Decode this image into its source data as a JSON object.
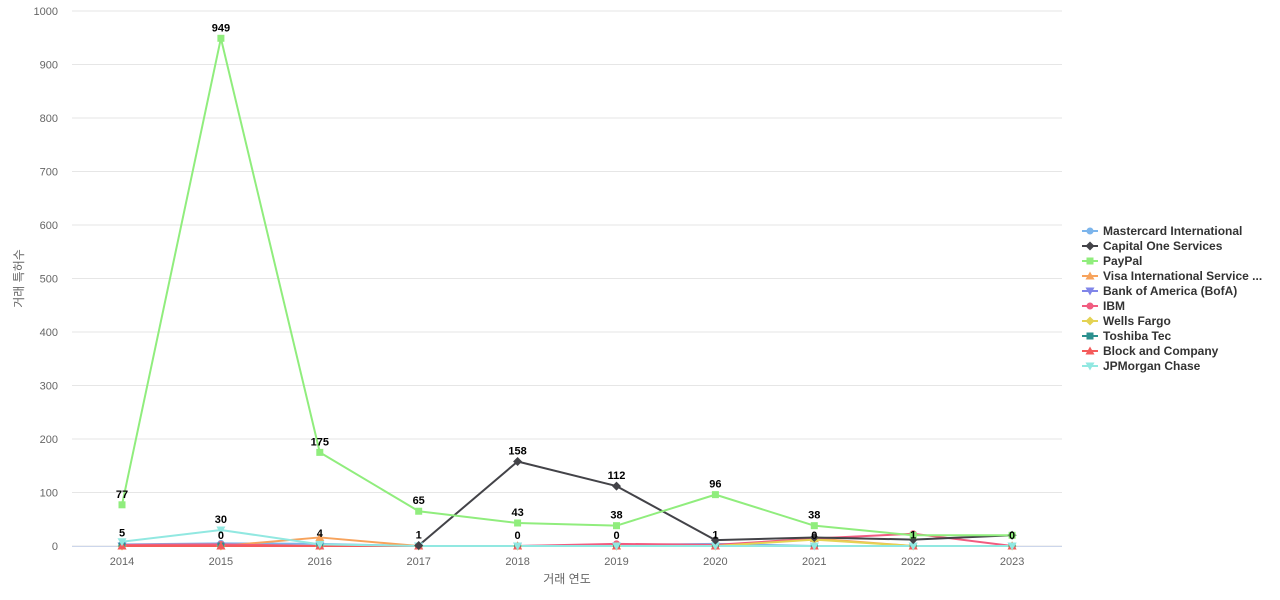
{
  "chart_data": {
    "type": "line",
    "title": "",
    "xlabel": "거래 연도",
    "ylabel": "거래 특허수",
    "categories": [
      "2014",
      "2015",
      "2016",
      "2017",
      "2018",
      "2019",
      "2020",
      "2021",
      "2022",
      "2023"
    ],
    "ylim": [
      0,
      1000
    ],
    "yticks": [
      0,
      100,
      200,
      300,
      400,
      500,
      600,
      700,
      800,
      900,
      1000
    ],
    "grid": true,
    "legend_position": "right",
    "series": [
      {
        "name": "Mastercard International",
        "color": "#7cb5ec",
        "marker": "circle",
        "values": [
          3,
          5,
          4,
          0,
          0,
          2,
          4,
          0,
          0,
          0
        ]
      },
      {
        "name": "Capital One Services",
        "color": "#434348",
        "marker": "diamond",
        "values": [
          null,
          null,
          null,
          1,
          158,
          112,
          11,
          16,
          12,
          20
        ]
      },
      {
        "name": "PayPal",
        "color": "#90ed7d",
        "marker": "square",
        "values": [
          77,
          949,
          175,
          65,
          43,
          38,
          96,
          38,
          20,
          20
        ]
      },
      {
        "name": "Visa International Service ...",
        "color": "#f7a35c",
        "marker": "triangle",
        "values": [
          0,
          0,
          16,
          0,
          0,
          0,
          0,
          14,
          0,
          0
        ]
      },
      {
        "name": "Bank of America (BofA)",
        "color": "#8085e9",
        "marker": "triangle-down",
        "values": [
          0,
          0,
          0,
          0,
          0,
          0,
          0,
          0,
          0,
          0
        ]
      },
      {
        "name": "IBM",
        "color": "#f15c80",
        "marker": "circle",
        "values": [
          2,
          3,
          0,
          0,
          0,
          4,
          2,
          14,
          23,
          0
        ]
      },
      {
        "name": "Wells Fargo",
        "color": "#e4d354",
        "marker": "diamond",
        "values": [
          0,
          0,
          0,
          0,
          0,
          0,
          0,
          12,
          0,
          0
        ]
      },
      {
        "name": "Toshiba Tec",
        "color": "#2b908f",
        "marker": "square",
        "values": [
          0,
          0,
          0,
          0,
          0,
          0,
          0,
          0,
          0,
          0
        ]
      },
      {
        "name": "Block and Company",
        "color": "#f45b5b",
        "marker": "triangle",
        "values": [
          0,
          0,
          0,
          0,
          0,
          0,
          0,
          0,
          0,
          0
        ]
      },
      {
        "name": "JPMorgan Chase",
        "color": "#91e8e1",
        "marker": "triangle-down",
        "values": [
          8,
          30,
          3,
          0,
          0,
          0,
          0,
          0,
          0,
          0
        ]
      }
    ],
    "data_labels": [
      {
        "x": "2014",
        "text": "77",
        "value": 77
      },
      {
        "x": "2014",
        "text": "5",
        "value": 5
      },
      {
        "x": "2015",
        "text": "949",
        "value": 949
      },
      {
        "x": "2015",
        "text": "30",
        "value": 30
      },
      {
        "x": "2015",
        "text": "0",
        "value": 0
      },
      {
        "x": "2016",
        "text": "175",
        "value": 175
      },
      {
        "x": "2016",
        "text": "4",
        "value": 4
      },
      {
        "x": "2017",
        "text": "65",
        "value": 65
      },
      {
        "x": "2017",
        "text": "1",
        "value": 1
      },
      {
        "x": "2018",
        "text": "158",
        "value": 158
      },
      {
        "x": "2018",
        "text": "43",
        "value": 43
      },
      {
        "x": "2018",
        "text": "0",
        "value": 0
      },
      {
        "x": "2019",
        "text": "112",
        "value": 112
      },
      {
        "x": "2019",
        "text": "38",
        "value": 38
      },
      {
        "x": "2019",
        "text": "0",
        "value": 0
      },
      {
        "x": "2020",
        "text": "96",
        "value": 96
      },
      {
        "x": "2020",
        "text": "1",
        "value": 1
      },
      {
        "x": "2021",
        "text": "38",
        "value": 38
      },
      {
        "x": "2021",
        "text": "0",
        "value": 0
      },
      {
        "x": "2022",
        "text": "1",
        "value": 1
      },
      {
        "x": "2023",
        "text": "0",
        "value": 0
      }
    ]
  }
}
